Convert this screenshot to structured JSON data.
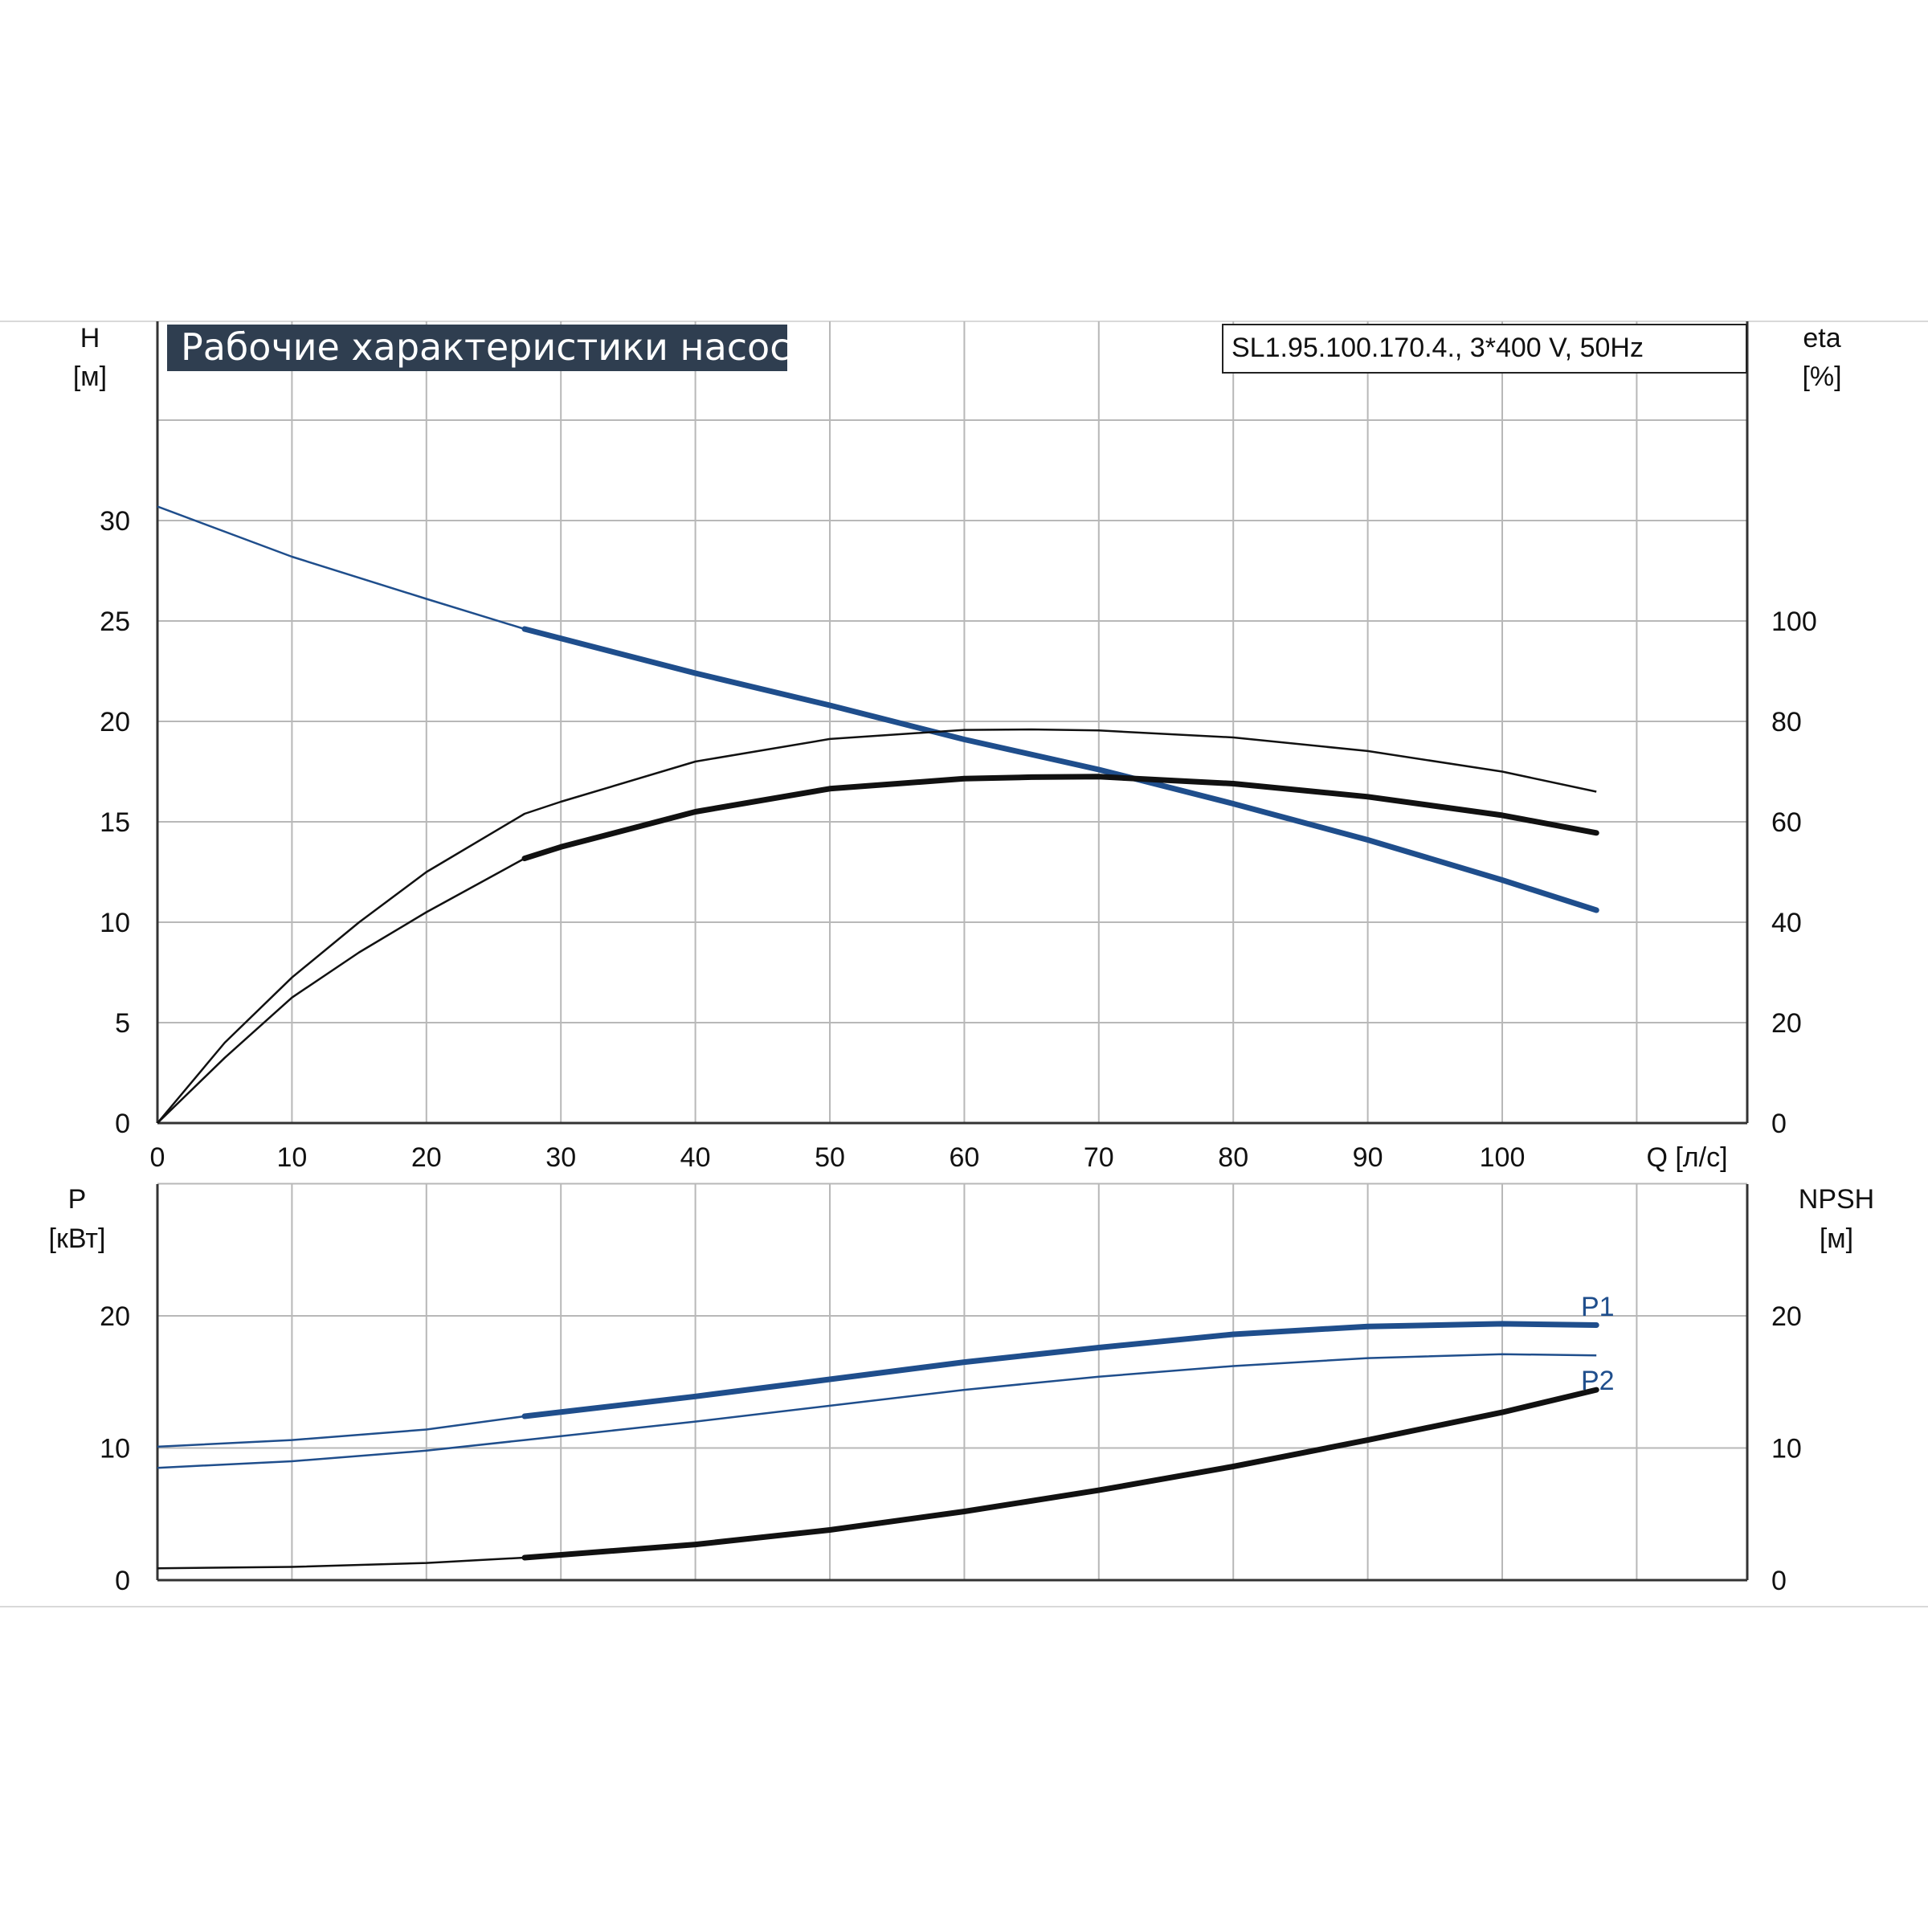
{
  "title": "Рабочие характеристики насоса",
  "model": "SL1.95.100.170.4., 3*400 V, 50Hz",
  "colors": {
    "blue": "#1f4e8c",
    "black": "#111111",
    "grid": "#b8b8b8",
    "title_bg": "#2f3e50"
  },
  "chart_data": [
    {
      "type": "line",
      "name": "upper",
      "x_label": "Q [л/с]",
      "x_ticks": [
        "0",
        "10",
        "20",
        "30",
        "40",
        "50",
        "60",
        "70",
        "80",
        "90",
        "100"
      ],
      "xlim": [
        0,
        118
      ],
      "y_left": {
        "label": "H",
        "unit": "[м]",
        "ticks": [
          "0",
          "5",
          "10",
          "15",
          "20",
          "25",
          "30"
        ],
        "ylim": [
          0,
          40
        ]
      },
      "y_right": {
        "label": "eta",
        "unit": "[%]",
        "ticks": [
          "0",
          "20",
          "40",
          "60",
          "80",
          "100"
        ],
        "ylim": [
          0,
          160
        ]
      },
      "grid": true,
      "series": [
        {
          "axis": "left",
          "color": "#1f4e8c",
          "values": [
            [
              0,
              30.7
            ],
            [
              10,
              28.2
            ],
            [
              20,
              26.1
            ],
            [
              27.3,
              24.6
            ],
            [
              40,
              22.4
            ],
            [
              50,
              20.8
            ],
            [
              60,
              19.1
            ],
            [
              70,
              17.6
            ],
            [
              80,
              15.9
            ],
            [
              90,
              14.1
            ],
            [
              100,
              12.1
            ],
            [
              107,
              10.6
            ]
          ],
          "bold_from": 27.3
        },
        {
          "axis": "right",
          "color": "#111111",
          "values": [
            [
              0,
              0
            ],
            [
              5,
              16
            ],
            [
              10,
              29
            ],
            [
              15,
              40
            ],
            [
              20,
              50
            ],
            [
              27.3,
              61.6
            ],
            [
              30,
              64
            ],
            [
              40,
              72
            ],
            [
              50,
              76.5
            ],
            [
              60,
              78.3
            ],
            [
              65,
              78.4
            ],
            [
              70,
              78.2
            ],
            [
              80,
              76.8
            ],
            [
              90,
              74.1
            ],
            [
              100,
              70
            ],
            [
              107,
              66
            ]
          ]
        },
        {
          "axis": "right",
          "color": "#111111",
          "values": [
            [
              0,
              0
            ],
            [
              5,
              13
            ],
            [
              10,
              25
            ],
            [
              15,
              34
            ],
            [
              20,
              42
            ],
            [
              27.3,
              52.7
            ],
            [
              30,
              55
            ],
            [
              40,
              62
            ],
            [
              50,
              66.6
            ],
            [
              60,
              68.6
            ],
            [
              65,
              68.9
            ],
            [
              70,
              69
            ],
            [
              80,
              67.6
            ],
            [
              90,
              65
            ],
            [
              100,
              61.3
            ],
            [
              107,
              57.8
            ]
          ],
          "bold_from": 27.3
        }
      ]
    },
    {
      "type": "line",
      "name": "lower",
      "x_ticks": [
        "0",
        "10",
        "20",
        "30",
        "40",
        "50",
        "60",
        "70",
        "80",
        "90",
        "100"
      ],
      "xlim": [
        0,
        118
      ],
      "y_left": {
        "label": "P",
        "unit": "[кВт]",
        "ticks": [
          "0",
          "10",
          "20"
        ],
        "ylim": [
          0,
          30
        ]
      },
      "y_right": {
        "label": "NPSH",
        "unit": "[м]",
        "ticks": [
          "0",
          "10",
          "20"
        ],
        "ylim": [
          0,
          30
        ]
      },
      "grid": true,
      "series": [
        {
          "name": "P1",
          "axis": "left",
          "color": "#1f4e8c",
          "values": [
            [
              0,
              10.1
            ],
            [
              10,
              10.6
            ],
            [
              20,
              11.4
            ],
            [
              27.3,
              12.4
            ],
            [
              40,
              13.9
            ],
            [
              50,
              15.2
            ],
            [
              60,
              16.5
            ],
            [
              70,
              17.6
            ],
            [
              80,
              18.6
            ],
            [
              90,
              19.2
            ],
            [
              100,
              19.4
            ],
            [
              107,
              19.3
            ]
          ],
          "bold_from": 27.3
        },
        {
          "name": "P2",
          "axis": "left",
          "color": "#1f4e8c",
          "values": [
            [
              0,
              8.5
            ],
            [
              10,
              9.0
            ],
            [
              20,
              9.8
            ],
            [
              27.3,
              10.6
            ],
            [
              40,
              12.0
            ],
            [
              50,
              13.2
            ],
            [
              60,
              14.4
            ],
            [
              70,
              15.4
            ],
            [
              80,
              16.2
            ],
            [
              90,
              16.8
            ],
            [
              100,
              17.1
            ],
            [
              107,
              17.0
            ]
          ]
        },
        {
          "axis": "right",
          "color": "#111111",
          "values": [
            [
              0,
              0.9
            ],
            [
              10,
              1.0
            ],
            [
              20,
              1.3
            ],
            [
              27.3,
              1.7
            ],
            [
              40,
              2.7
            ],
            [
              50,
              3.8
            ],
            [
              60,
              5.2
            ],
            [
              70,
              6.8
            ],
            [
              80,
              8.6
            ],
            [
              90,
              10.6
            ],
            [
              100,
              12.7
            ],
            [
              107,
              14.4
            ]
          ],
          "bold_from": 27.3
        }
      ]
    }
  ]
}
